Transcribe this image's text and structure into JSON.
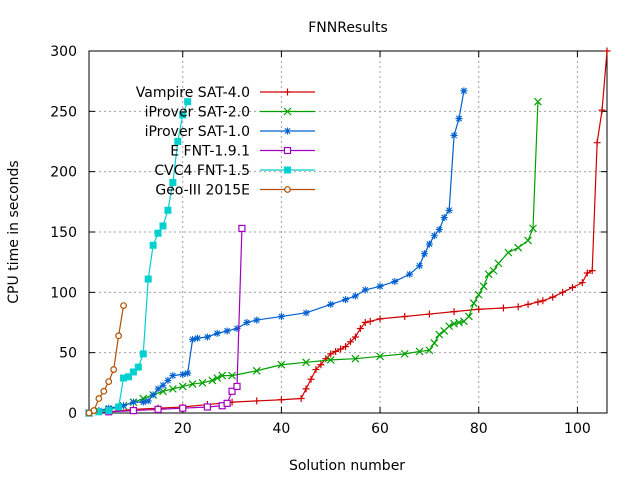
{
  "chart_data": {
    "type": "line",
    "title": "FNNResults",
    "xlabel": "Solution number",
    "ylabel": "CPU time in seconds",
    "xlim": [
      1,
      106
    ],
    "ylim": [
      0,
      300
    ],
    "xticks": [
      20,
      40,
      60,
      80,
      100
    ],
    "yticks": [
      0,
      50,
      100,
      150,
      200,
      250,
      300
    ],
    "grid": true,
    "legend_position": "top-left",
    "series": [
      {
        "name": "Vampire SAT-4.0",
        "color": "#d00000",
        "marker": "plus",
        "x": [
          1,
          5,
          10,
          15,
          20,
          25,
          30,
          35,
          40,
          44,
          45,
          46,
          47,
          48,
          49,
          50,
          51,
          52,
          53,
          54,
          55,
          56,
          57,
          58,
          60,
          65,
          70,
          75,
          80,
          85,
          88,
          90,
          92,
          93,
          95,
          97,
          99,
          101,
          102,
          103,
          104,
          105,
          106
        ],
        "y": [
          0,
          1,
          3,
          4,
          5,
          7,
          9,
          10,
          11,
          12,
          20,
          28,
          36,
          40,
          45,
          49,
          51,
          53,
          55,
          59,
          63,
          70,
          75,
          76,
          78,
          80,
          82,
          84,
          86,
          87,
          88,
          90,
          92,
          93,
          96,
          100,
          104,
          108,
          116,
          118,
          224,
          251,
          300
        ]
      },
      {
        "name": "iProver SAT-2.0",
        "color": "#00a000",
        "marker": "x",
        "x": [
          1,
          5,
          8,
          10,
          12,
          14,
          16,
          18,
          20,
          22,
          24,
          26,
          27,
          28,
          30,
          35,
          40,
          45,
          50,
          55,
          60,
          65,
          68,
          70,
          71,
          72,
          73,
          74,
          75,
          76,
          77,
          78,
          79,
          80,
          81,
          82,
          83,
          84,
          86,
          88,
          90,
          91,
          92
        ],
        "y": [
          0,
          3,
          6,
          9,
          12,
          15,
          18,
          20,
          22,
          24,
          25,
          27,
          29,
          31,
          31,
          35,
          40,
          42,
          44,
          45,
          47,
          49,
          51,
          52,
          58,
          65,
          68,
          72,
          74,
          75,
          76,
          80,
          91,
          98,
          105,
          115,
          118,
          124,
          133,
          137,
          143,
          153,
          258
        ]
      },
      {
        "name": "iProver SAT-1.0",
        "color": "#0060d0",
        "marker": "star",
        "x": [
          1,
          3,
          5,
          8,
          10,
          12,
          13,
          14,
          15,
          16,
          17,
          18,
          20,
          21,
          22,
          23,
          25,
          27,
          29,
          31,
          33,
          35,
          40,
          45,
          50,
          53,
          55,
          57,
          60,
          63,
          66,
          68,
          69,
          70,
          71,
          72,
          73,
          74,
          75,
          76,
          77
        ],
        "y": [
          0,
          2,
          4,
          6,
          9,
          9,
          10,
          15,
          20,
          23,
          27,
          31,
          32,
          33,
          61,
          62,
          63,
          66,
          68,
          70,
          75,
          77,
          80,
          83,
          90,
          94,
          97,
          102,
          105,
          109,
          115,
          122,
          132,
          140,
          147,
          152,
          162,
          168,
          230,
          244,
          267
        ]
      },
      {
        "name": "E FNT-1.9.1",
        "color": "#a000c0",
        "marker": "square-open",
        "x": [
          1,
          5,
          10,
          15,
          20,
          25,
          28,
          29,
          30,
          31,
          32
        ],
        "y": [
          0,
          1,
          2,
          3,
          4,
          5,
          6,
          8,
          18,
          22,
          153
        ]
      },
      {
        "name": "CVC4 FNT-1.5",
        "color": "#00d0d0",
        "marker": "square-filled",
        "x": [
          1,
          3,
          5,
          7,
          8,
          9,
          10,
          11,
          12,
          13,
          14,
          15,
          16,
          17,
          18,
          19,
          20,
          21
        ],
        "y": [
          0,
          1,
          2,
          5,
          29,
          30,
          34,
          38,
          49,
          111,
          139,
          149,
          155,
          168,
          191,
          225,
          247,
          258
        ]
      },
      {
        "name": "Geo-III 2015E",
        "color": "#b05000",
        "marker": "circle-open",
        "x": [
          1,
          2,
          3,
          4,
          5,
          6,
          7,
          8
        ],
        "y": [
          0,
          2,
          12,
          18,
          26,
          36,
          64,
          89
        ]
      }
    ]
  }
}
